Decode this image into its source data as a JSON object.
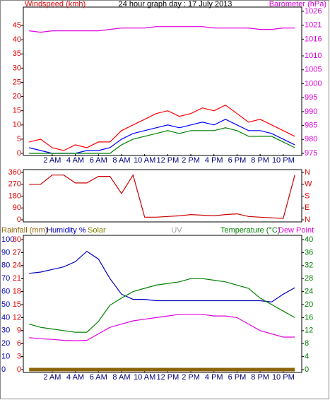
{
  "chart_data": [
    {
      "type": "line",
      "title": "24 hour graph day : 17 July 2013",
      "y_label": "Windspeed (kmh)",
      "y2_label": "Barometer (hPa)",
      "y_label_color": "#e00000",
      "y2_label_color": "#e000e0",
      "x": [
        0,
        1,
        2,
        3,
        4,
        5,
        6,
        7,
        8,
        9,
        10,
        11,
        12,
        13,
        14,
        15,
        16,
        17,
        18,
        19,
        20,
        21,
        22,
        23
      ],
      "xlim": [
        -0.5,
        23.6
      ],
      "xticks": [
        {
          "value": 2,
          "label": "2 AM"
        },
        {
          "value": 4,
          "label": "4 AM"
        },
        {
          "value": 6,
          "label": "6 AM"
        },
        {
          "value": 8,
          "label": "8 AM"
        },
        {
          "value": 10,
          "label": "10 AM"
        },
        {
          "value": 12,
          "label": "12 PM"
        },
        {
          "value": 14,
          "label": "2 PM"
        },
        {
          "value": 16,
          "label": "4 PM"
        },
        {
          "value": 18,
          "label": "6 PM"
        },
        {
          "value": 20,
          "label": "8 PM"
        },
        {
          "value": 22,
          "label": "10 PM"
        }
      ],
      "ylim": [
        0,
        50
      ],
      "yticks": [
        0,
        5,
        10,
        15,
        20,
        25,
        30,
        35,
        40,
        45
      ],
      "ytick_color": "#e00000",
      "y2lim": [
        975,
        1026
      ],
      "y2ticks": [
        975,
        980,
        985,
        990,
        995,
        1000,
        1005,
        1010,
        1016,
        1021,
        1026
      ],
      "y2tick_color": "#e000e0",
      "series": [
        {
          "color": "#ff0000",
          "values": [
            4,
            5,
            2,
            1,
            3,
            2,
            4,
            4,
            8,
            10,
            12,
            14,
            15,
            13,
            14,
            16,
            15,
            17,
            14,
            11,
            12,
            10,
            8,
            6
          ]
        },
        {
          "color": "#0000ff",
          "values": [
            2,
            1,
            0,
            0,
            0,
            1,
            1,
            2,
            5,
            7,
            8,
            9,
            10,
            9,
            10,
            11,
            10,
            12,
            10,
            8,
            8,
            7,
            5,
            3
          ]
        },
        {
          "color": "#008000",
          "values": [
            0,
            0,
            0,
            0,
            0,
            0,
            0,
            0,
            3,
            5,
            6,
            7,
            8,
            7,
            8,
            8,
            8,
            9,
            8,
            6,
            6,
            6,
            4,
            2
          ]
        },
        {
          "color": "#e000e0",
          "axis": "y2",
          "values": [
            1019,
            1018.5,
            1019,
            1019,
            1019,
            1019,
            1019,
            1019.5,
            1020,
            1020,
            1020,
            1020.5,
            1020.5,
            1020.5,
            1020.5,
            1020.5,
            1020,
            1020,
            1020,
            1020,
            1019.5,
            1019.5,
            1020,
            1020
          ]
        }
      ]
    },
    {
      "type": "line",
      "x": [
        0,
        1,
        2,
        3,
        4,
        5,
        6,
        7,
        8,
        9,
        10,
        11,
        12,
        13,
        14,
        15,
        16,
        17,
        18,
        19,
        20,
        21,
        22,
        23
      ],
      "xlim": [
        -0.5,
        23.6
      ],
      "ylim": [
        0,
        360
      ],
      "yticks": [
        0,
        90,
        180,
        270,
        360
      ],
      "ytick_color": "#e00000",
      "y2lim": [
        0,
        360
      ],
      "y2ticks": [
        {
          "value": 360,
          "label": "N"
        },
        {
          "value": 270,
          "label": "W"
        },
        {
          "value": 180,
          "label": "S"
        },
        {
          "value": 90,
          "label": "E"
        },
        {
          "value": 0,
          "label": "N"
        }
      ],
      "y2tick_color": "#e00000",
      "series": [
        {
          "color": "#cc0000",
          "values": [
            270,
            270,
            340,
            340,
            280,
            280,
            330,
            330,
            200,
            340,
            20,
            20,
            25,
            30,
            40,
            35,
            30,
            40,
            45,
            25,
            20,
            15,
            10,
            340
          ]
        }
      ]
    },
    {
      "type": "line",
      "x": [
        0,
        1,
        2,
        3,
        4,
        5,
        6,
        7,
        8,
        9,
        10,
        11,
        12,
        13,
        14,
        15,
        16,
        17,
        18,
        19,
        20,
        21,
        22,
        23
      ],
      "xlim": [
        -0.5,
        23.6
      ],
      "xticks": [
        {
          "value": 2,
          "label": "2 AM"
        },
        {
          "value": 4,
          "label": "4 AM"
        },
        {
          "value": 6,
          "label": "6 AM"
        },
        {
          "value": 8,
          "label": "8 AM"
        },
        {
          "value": 10,
          "label": "10 AM"
        },
        {
          "value": 12,
          "label": "12 PM"
        },
        {
          "value": 14,
          "label": "2 PM"
        },
        {
          "value": 16,
          "label": "4 PM"
        },
        {
          "value": 18,
          "label": "6 PM"
        },
        {
          "value": 20,
          "label": "8 PM"
        },
        {
          "value": 22,
          "label": "10 PM"
        }
      ],
      "ylim": [
        0,
        100
      ],
      "yticks": [
        0,
        10,
        20,
        30,
        40,
        50,
        60,
        70,
        80,
        90,
        100
      ],
      "ytick_color": "#0000c0",
      "y3lim": [
        0,
        30
      ],
      "y3ticks": [
        0,
        3,
        6,
        9,
        12,
        15,
        18,
        21,
        24,
        27,
        30
      ],
      "y3tick_color": "#e00000",
      "y2lim": [
        0,
        40
      ],
      "y2ticks": [
        0,
        4,
        8,
        12,
        16,
        20,
        24,
        28,
        32,
        36,
        40
      ],
      "y2tick_color": "#008000",
      "inactive_labels": [
        {
          "text": "Solar",
          "color": "#808000"
        },
        {
          "text": "UV",
          "color": "#a0a0a0"
        }
      ],
      "series": [
        {
          "name": "Rainfall (mm)",
          "color": "#8b6508",
          "axis": "y3",
          "values": [
            0,
            0,
            0,
            0,
            0,
            0,
            0,
            0,
            0,
            0,
            0,
            0,
            0,
            0,
            0,
            0,
            0,
            0,
            0,
            0,
            0,
            0,
            0,
            0
          ]
        },
        {
          "name": "Humidity %",
          "color": "#0000c0",
          "values": [
            74,
            75,
            77,
            79,
            83,
            91,
            85,
            70,
            58,
            54,
            54,
            53,
            53,
            53,
            53,
            53,
            53,
            53,
            53,
            53,
            53,
            52,
            58,
            63
          ]
        },
        {
          "name": "Temperature (°C)",
          "color": "#008000",
          "axis": "y2",
          "values": [
            14,
            13,
            12.5,
            12,
            11.5,
            11.5,
            14.8,
            19.8,
            22,
            24,
            25,
            26,
            26.5,
            27,
            28,
            28,
            27.5,
            27,
            26,
            25,
            22,
            20,
            18,
            16
          ]
        },
        {
          "name": "Dew Point",
          "color": "#e000e0",
          "axis": "y2",
          "values": [
            9.8,
            9.5,
            9.3,
            9,
            8.9,
            9,
            11,
            13,
            14,
            15,
            15.5,
            16,
            16.5,
            17,
            17,
            17,
            16.5,
            16.5,
            16,
            14,
            12,
            11,
            10,
            10
          ]
        }
      ]
    }
  ]
}
